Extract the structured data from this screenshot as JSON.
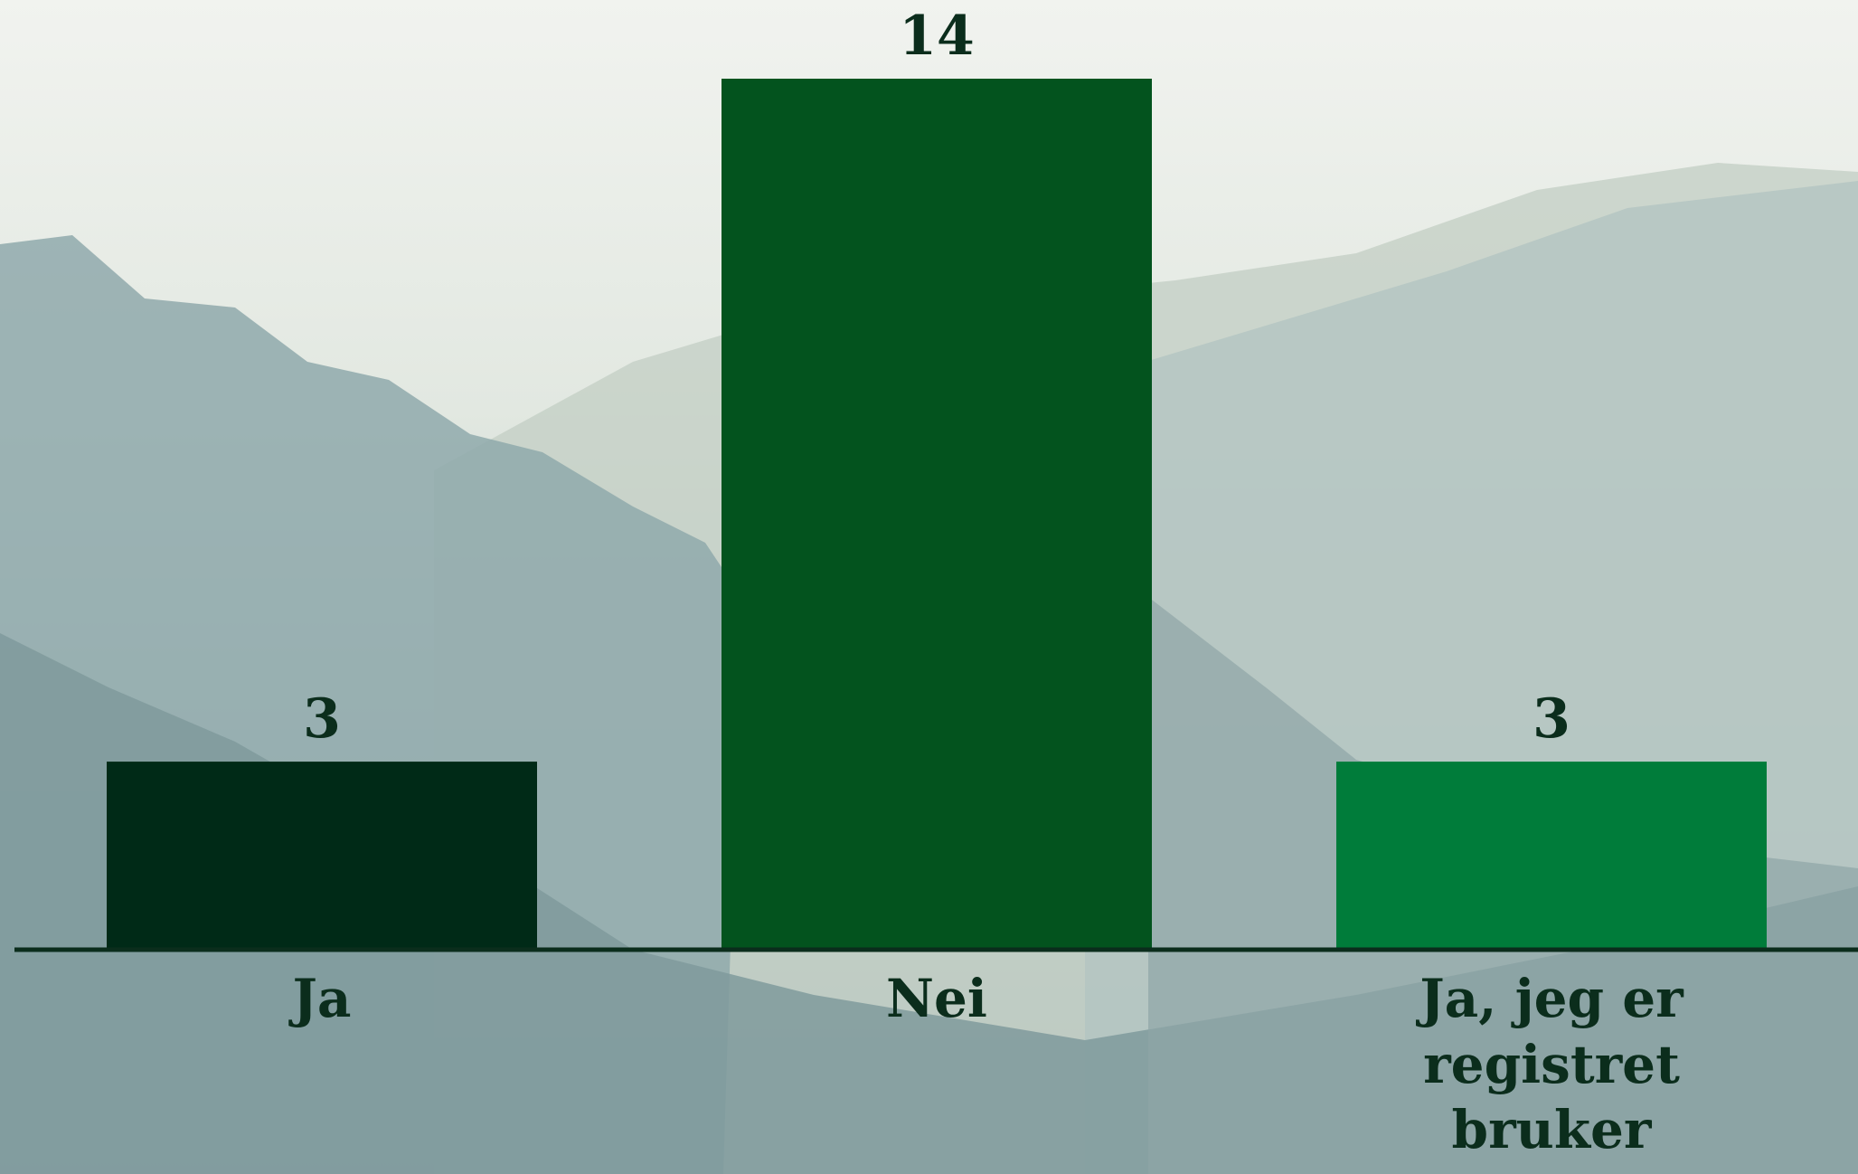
{
  "chart_data": {
    "type": "bar",
    "categories": [
      "Ja",
      "Nei",
      "Ja, jeg er registret bruker"
    ],
    "series": [
      {
        "values": [
          3,
          14,
          3
        ]
      }
    ],
    "colors": [
      "#002a17",
      "#03531e",
      "#007c3a"
    ]
  }
}
